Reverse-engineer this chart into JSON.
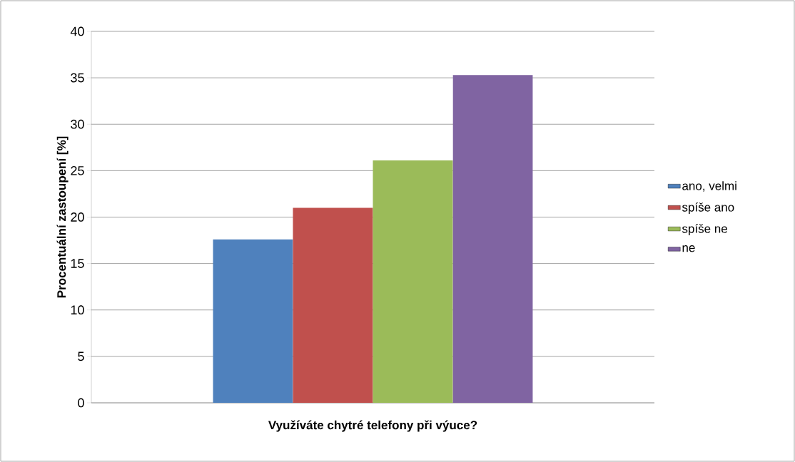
{
  "chart_data": {
    "type": "bar",
    "xlabel": "Využíváte chytré telefony při výuce?",
    "ylabel": "Procentuální zastoupení [%]",
    "categories": [
      null
    ],
    "series": [
      {
        "name": "ano, velmi",
        "color": "#4f81bd",
        "values": [
          17.6
        ]
      },
      {
        "name": "spíše ano",
        "color": "#c0504d",
        "values": [
          21.0
        ]
      },
      {
        "name": "spíše ne",
        "color": "#9bbb59",
        "values": [
          26.1
        ]
      },
      {
        "name": "ne",
        "color": "#8064a2",
        "values": [
          35.3
        ]
      }
    ],
    "ylim": [
      0,
      40
    ],
    "yticks": [
      0,
      5,
      10,
      15,
      20,
      25,
      30,
      35,
      40
    ],
    "grid": "y",
    "legend": "right"
  }
}
